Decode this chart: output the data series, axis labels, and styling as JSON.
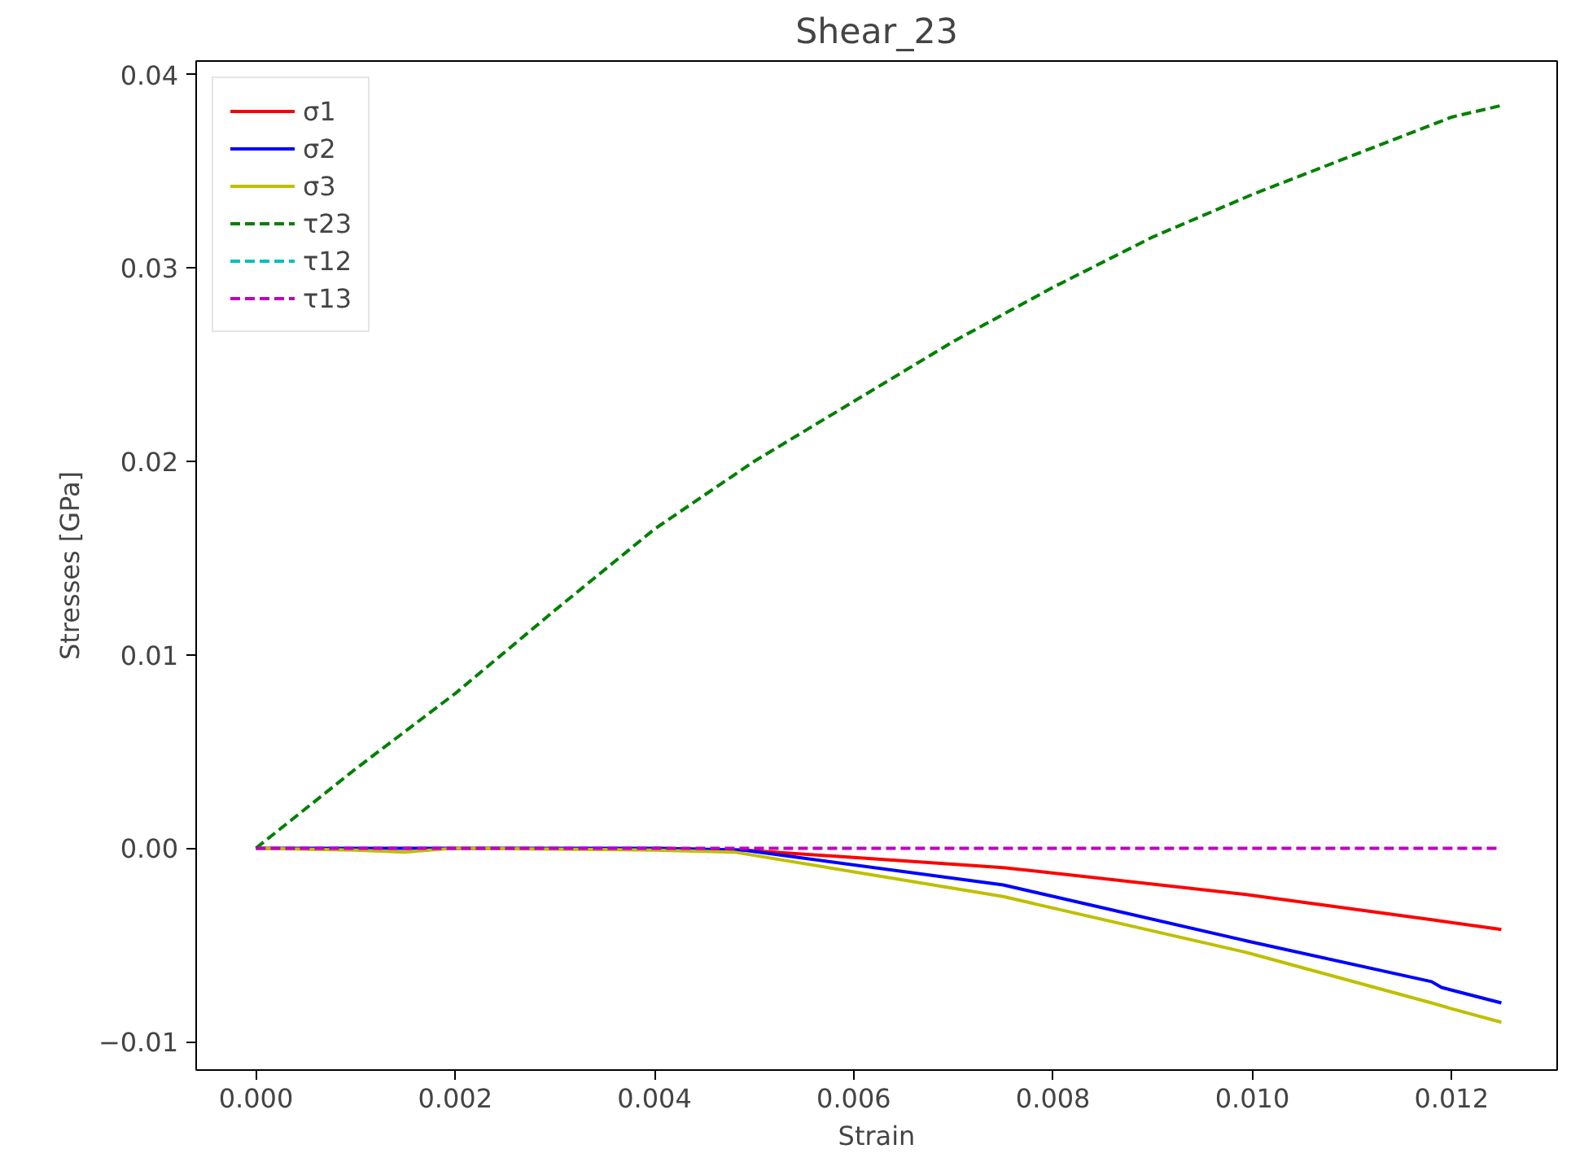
{
  "chart_data": {
    "type": "line",
    "title": "Shear_23",
    "xlabel": "Strain",
    "ylabel": "Stresses [GPa]",
    "xlim": [
      -0.0006,
      0.01306
    ],
    "ylim": [
      -0.01147,
      0.0407
    ],
    "xticks": [
      {
        "value": 0,
        "label": "0.000"
      },
      {
        "value": 0.002,
        "label": "0.002"
      },
      {
        "value": 0.004,
        "label": "0.004"
      },
      {
        "value": 0.006,
        "label": "0.006"
      },
      {
        "value": 0.008,
        "label": "0.008"
      },
      {
        "value": 0.01,
        "label": "0.010"
      },
      {
        "value": 0.012,
        "label": "0.012"
      }
    ],
    "yticks": [
      {
        "value": -0.01,
        "label": "−0.01"
      },
      {
        "value": 0,
        "label": "0.00"
      },
      {
        "value": 0.01,
        "label": "0.01"
      },
      {
        "value": 0.02,
        "label": "0.02"
      },
      {
        "value": 0.03,
        "label": "0.03"
      },
      {
        "value": 0.04,
        "label": "0.04"
      }
    ],
    "grid": false,
    "legend": "top left",
    "series": [
      {
        "name": "σ1",
        "color": "#ff0000",
        "line_style": "solid",
        "x": [
          0.004,
          0.0049,
          0.0075,
          0.00995,
          0.0118,
          0.0125
        ],
        "values": [
          0,
          -0.0001,
          -0.001,
          -0.0024,
          -0.0037,
          -0.0042
        ]
      },
      {
        "name": "σ2",
        "color": "#0000ff",
        "line_style": "solid",
        "x": [
          0,
          0.002,
          0.004,
          0.0049,
          0.0075,
          0.00995,
          0.0118,
          0.0119,
          0.0125
        ],
        "values": [
          0,
          0,
          0,
          -0.0001,
          -0.0019,
          -0.0048,
          -0.0069,
          -0.0072,
          -0.008
        ]
      },
      {
        "name": "σ3",
        "color": "#bfbf00",
        "line_style": "solid",
        "x": [
          0,
          0.001,
          0.0015,
          0.002,
          0.004,
          0.0048,
          0.0075,
          0.00995,
          0.0118,
          0.012,
          0.0125
        ],
        "values": [
          0,
          -0.0001,
          -0.0002,
          0,
          -0.0001,
          -0.0002,
          -0.0025,
          -0.0054,
          -0.008,
          -0.0083,
          -0.009
        ]
      },
      {
        "name": "τ23",
        "color": "#008000",
        "line_style": "dashed",
        "x": [
          0,
          0.001,
          0.002,
          0.003,
          0.004,
          0.005,
          0.006,
          0.007,
          0.008,
          0.009,
          0.01,
          0.011,
          0.012,
          0.0125
        ],
        "values": [
          0,
          0.0041,
          0.008,
          0.0123,
          0.0165,
          0.02,
          0.0231,
          0.0262,
          0.029,
          0.0316,
          0.0338,
          0.0358,
          0.0378,
          0.0384
        ]
      },
      {
        "name": "τ12",
        "color": "#00bfbf",
        "line_style": "dashed"
      },
      {
        "name": "τ13",
        "color": "#bf00bf",
        "line_style": "dashed",
        "x": [
          0,
          0.0125
        ],
        "values": [
          0,
          0
        ]
      }
    ]
  }
}
